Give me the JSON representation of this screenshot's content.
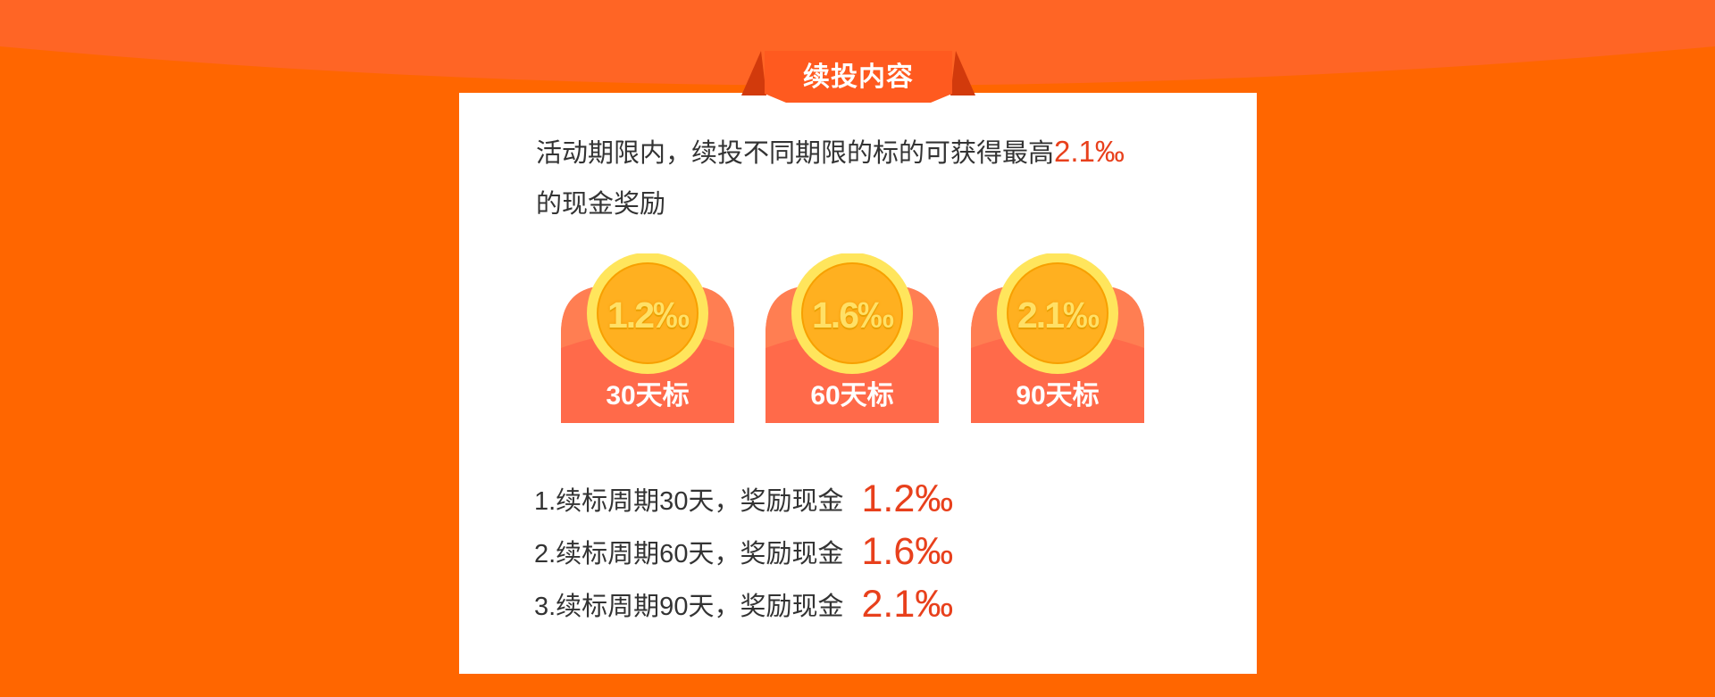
{
  "colors": {
    "page_background": "#ff6600",
    "top_band": "#ff6525",
    "card_background": "#ffffff",
    "ribbon": "#ff5a1f",
    "ribbon_fold": "#d23a0c",
    "accent_text": "#e8401c",
    "body_text": "#333333",
    "coupon_body": "#ff6a4a",
    "coupon_arc": "#ff7e52",
    "coin_ring": "#ffe55c",
    "coin_face": "#ffb020"
  },
  "section": {
    "title": "续投内容"
  },
  "intro": {
    "text_before": "活动期限内，续投不同期限的标的可获得最高",
    "highlight": "2.1‰",
    "text_after": "的现金奖励"
  },
  "coupons": [
    {
      "rate": "1.2‰",
      "label": "30天标",
      "icon": "gold-coin-icon"
    },
    {
      "rate": "1.6‰",
      "label": "60天标",
      "icon": "gold-coin-icon"
    },
    {
      "rate": "2.1‰",
      "label": "90天标",
      "icon": "gold-coin-icon"
    }
  ],
  "rules": [
    {
      "text": "1.续标周期30天，奖励现金",
      "rate": "1.2‰"
    },
    {
      "text": "2.续标周期60天，奖励现金",
      "rate": "1.6‰"
    },
    {
      "text": "3.续标周期90天，奖励现金",
      "rate": "2.1‰"
    }
  ]
}
